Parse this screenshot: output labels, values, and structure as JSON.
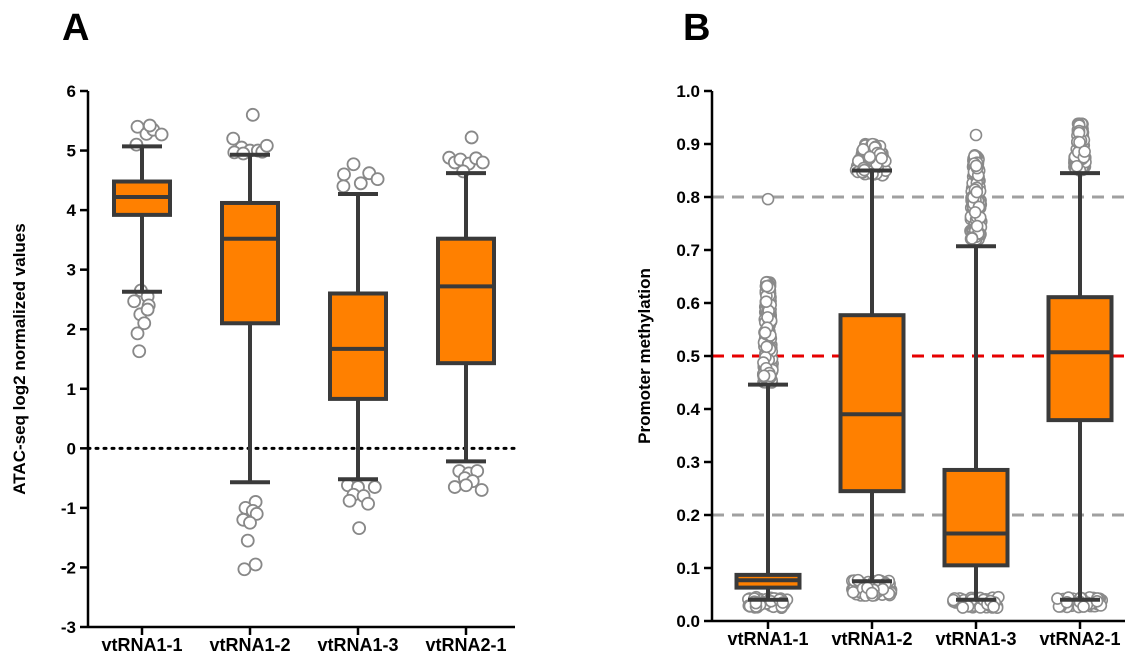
{
  "colors": {
    "box_fill": "#ff8000",
    "box_stroke": "#3a3a3a",
    "outlier_a": "#888888",
    "outlier_b": "#8a8a8a",
    "ref_dotted": "#000000",
    "ref_red": "#e60000",
    "ref_gray": "#a0a0a0"
  },
  "chart_data": [
    {
      "panel": "A",
      "type": "box",
      "categories": [
        "vtRNA1-1",
        "vtRNA1-2",
        "vtRNA1-3",
        "vtRNA2-1"
      ],
      "ylabel": "ATAC-seq log2 normalized values",
      "ylim": [
        -3,
        6
      ],
      "yticks": [
        "-3",
        "-2",
        "-1",
        "0",
        "1",
        "2",
        "3",
        "4",
        "5",
        "6"
      ],
      "boxes": [
        {
          "whisker_low": 2.63,
          "q1": 3.92,
          "median": 4.22,
          "q3": 4.48,
          "whisker_high": 5.07
        },
        {
          "whisker_low": -0.57,
          "q1": 2.1,
          "median": 3.52,
          "q3": 4.12,
          "whisker_high": 4.93
        },
        {
          "whisker_low": -0.52,
          "q1": 0.83,
          "median": 1.67,
          "q3": 2.6,
          "whisker_high": 4.27
        },
        {
          "whisker_low": -0.22,
          "q1": 1.43,
          "median": 2.72,
          "q3": 3.52,
          "whisker_high": 4.62
        }
      ],
      "outliers": [
        [
          [
            -0.08,
            5.4
          ],
          [
            0.08,
            5.28
          ],
          [
            0.2,
            5.35
          ],
          [
            0.35,
            5.27
          ],
          [
            -0.1,
            5.1
          ],
          [
            0.14,
            5.42
          ],
          [
            -0.02,
            2.65
          ],
          [
            0.1,
            2.55
          ],
          [
            -0.14,
            2.47
          ],
          [
            0.12,
            2.4
          ],
          [
            -0.03,
            2.25
          ],
          [
            0.04,
            2.1
          ],
          [
            -0.08,
            1.93
          ],
          [
            0.1,
            2.33
          ],
          [
            -0.05,
            1.63
          ]
        ],
        [
          [
            -0.3,
            5.2
          ],
          [
            -0.15,
            5.05
          ],
          [
            -0.28,
            4.97
          ],
          [
            0.0,
            5.0
          ],
          [
            0.14,
            5.0
          ],
          [
            0.22,
            4.98
          ],
          [
            0.3,
            5.08
          ],
          [
            0.05,
            5.6
          ],
          [
            -0.12,
            4.95
          ],
          [
            0.1,
            -0.9
          ],
          [
            -0.08,
            -1.0
          ],
          [
            0.05,
            -1.05
          ],
          [
            -0.12,
            -1.2
          ],
          [
            0.12,
            -1.1
          ],
          [
            0.0,
            -1.25
          ],
          [
            -0.04,
            -1.55
          ],
          [
            -0.1,
            -2.03
          ],
          [
            0.1,
            -1.95
          ]
        ],
        [
          [
            -0.25,
            4.6
          ],
          [
            -0.08,
            4.77
          ],
          [
            0.2,
            4.62
          ],
          [
            0.35,
            4.52
          ],
          [
            -0.26,
            4.4
          ],
          [
            0.05,
            4.45
          ],
          [
            -0.18,
            -0.62
          ],
          [
            0.0,
            -0.65
          ],
          [
            0.3,
            -0.65
          ],
          [
            -0.08,
            -0.78
          ],
          [
            0.1,
            -0.8
          ],
          [
            -0.15,
            -0.88
          ],
          [
            0.18,
            -0.93
          ],
          [
            0.02,
            -1.34
          ]
        ],
        [
          [
            -0.3,
            4.88
          ],
          [
            -0.2,
            4.8
          ],
          [
            -0.1,
            4.85
          ],
          [
            0.05,
            4.78
          ],
          [
            0.18,
            4.87
          ],
          [
            0.3,
            4.8
          ],
          [
            0.1,
            5.22
          ],
          [
            -0.05,
            4.65
          ],
          [
            -0.12,
            -0.38
          ],
          [
            0.05,
            -0.42
          ],
          [
            0.2,
            -0.38
          ],
          [
            -0.02,
            -0.5
          ],
          [
            0.12,
            -0.55
          ],
          [
            -0.2,
            -0.65
          ],
          [
            0.28,
            -0.7
          ],
          [
            0.0,
            -0.62
          ]
        ]
      ],
      "ref_lines": [
        {
          "y": 0,
          "style": "dotted",
          "color": "#000000"
        }
      ]
    },
    {
      "panel": "B",
      "type": "box",
      "categories": [
        "vtRNA1-1",
        "vtRNA1-2",
        "vtRNA1-3",
        "vtRNA2-1"
      ],
      "ylabel": "Promoter methylation",
      "ylim": [
        0,
        1
      ],
      "yticks": [
        "0.0",
        "0.1",
        "0.2",
        "0.3",
        "0.4",
        "0.5",
        "0.6",
        "0.7",
        "0.8",
        "0.9",
        "1.0"
      ],
      "boxes": [
        {
          "whisker_low": 0.04,
          "q1": 0.063,
          "median": 0.077,
          "q3": 0.087,
          "whisker_high": 0.446
        },
        {
          "whisker_low": 0.075,
          "q1": 0.245,
          "median": 0.39,
          "q3": 0.577,
          "whisker_high": 0.85
        },
        {
          "whisker_low": 0.04,
          "q1": 0.105,
          "median": 0.165,
          "q3": 0.285,
          "whisker_high": 0.707
        },
        {
          "whisker_low": 0.04,
          "q1": 0.379,
          "median": 0.507,
          "q3": 0.611,
          "whisker_high": 0.845
        }
      ],
      "outlier_bands": [
        [
          {
            "ymin": 0.45,
            "ymax": 0.64,
            "spread": 0.1
          },
          {
            "ymin": 0.025,
            "ymax": 0.045,
            "spread": 0.4
          }
        ],
        [
          {
            "ymin": 0.84,
            "ymax": 0.9,
            "spread": 0.35
          },
          {
            "ymin": 0.048,
            "ymax": 0.078,
            "spread": 0.4
          }
        ],
        [
          {
            "ymin": 0.72,
            "ymax": 0.88,
            "spread": 0.12
          },
          {
            "ymin": 0.025,
            "ymax": 0.045,
            "spread": 0.45
          }
        ],
        [
          {
            "ymin": 0.85,
            "ymax": 0.94,
            "spread": 0.12
          },
          {
            "ymin": 0.025,
            "ymax": 0.045,
            "spread": 0.45
          }
        ]
      ],
      "extra_outliers": [
        [
          0,
          0.796
        ],
        [
          2,
          0.917
        ]
      ],
      "ref_lines": [
        {
          "y": 0.5,
          "style": "dashed",
          "color": "#e60000"
        },
        {
          "y": 0.8,
          "style": "dashed",
          "color": "#a0a0a0"
        },
        {
          "y": 0.2,
          "style": "dashed",
          "color": "#a0a0a0"
        }
      ]
    }
  ]
}
